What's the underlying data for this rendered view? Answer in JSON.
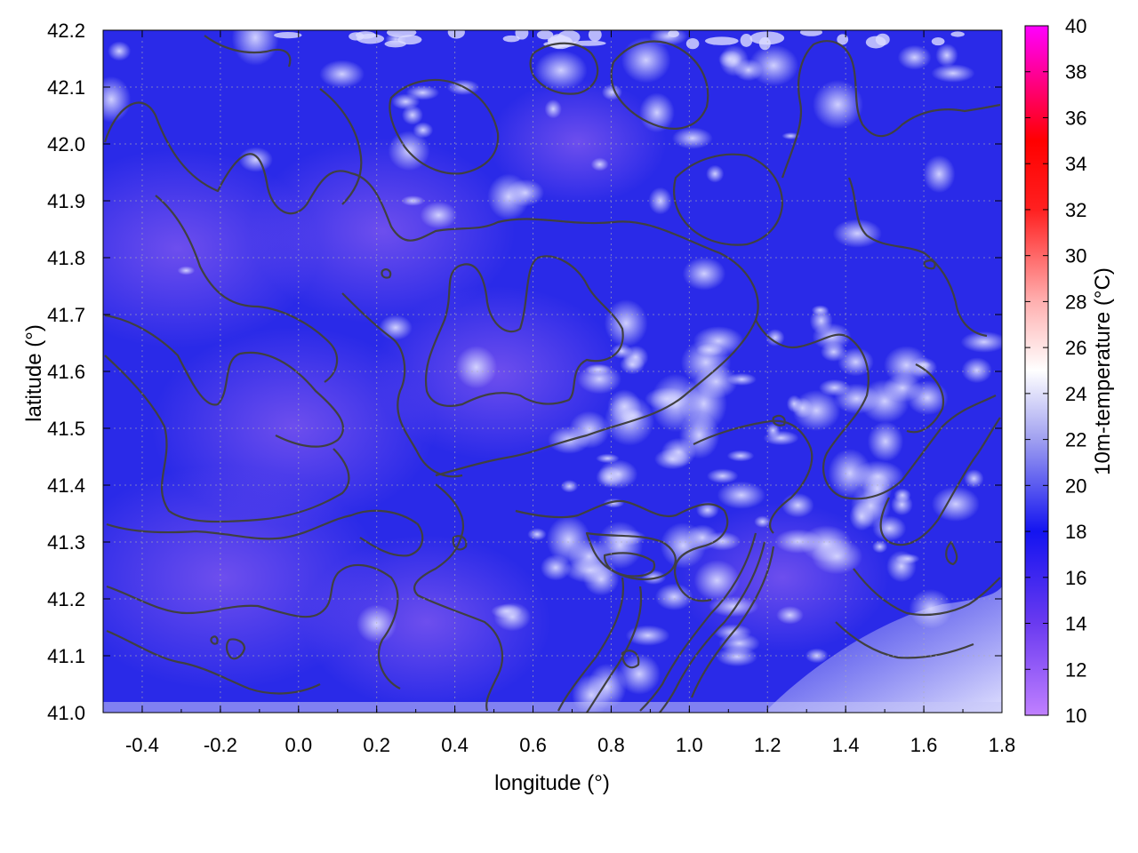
{
  "chart_data": {
    "type": "heatmap",
    "title": "",
    "xlabel": "longitude (°)",
    "ylabel": "latitude (°)",
    "xlim": [
      -0.5,
      1.8
    ],
    "ylim": [
      41.0,
      42.2
    ],
    "x_ticks": [
      "-0.4",
      "-0.2",
      "0.0",
      "0.2",
      "0.4",
      "0.6",
      "0.8",
      "1.0",
      "1.2",
      "1.4",
      "1.6",
      "1.8"
    ],
    "x_tick_values": [
      -0.4,
      -0.2,
      0.0,
      0.2,
      0.4,
      0.6,
      0.8,
      1.0,
      1.2,
      1.4,
      1.6,
      1.8
    ],
    "y_ticks": [
      "41.0",
      "41.1",
      "41.2",
      "41.3",
      "41.4",
      "41.5",
      "41.6",
      "41.7",
      "41.8",
      "41.9",
      "42.0",
      "42.1",
      "42.2"
    ],
    "y_tick_values": [
      41.0,
      41.1,
      41.2,
      41.3,
      41.4,
      41.5,
      41.6,
      41.7,
      41.8,
      41.9,
      42.0,
      42.1,
      42.2
    ],
    "grid": true,
    "colorbar": {
      "label": "10m-temperature (°C)",
      "range": [
        10,
        40
      ],
      "ticks": [
        "10",
        "12",
        "14",
        "16",
        "18",
        "20",
        "22",
        "24",
        "26",
        "28",
        "30",
        "32",
        "34",
        "36",
        "38",
        "40"
      ],
      "tick_values": [
        10,
        12,
        14,
        16,
        18,
        20,
        22,
        24,
        26,
        28,
        30,
        32,
        34,
        36,
        38,
        40
      ],
      "palette": [
        {
          "v": 10,
          "color": "#c080ff"
        },
        {
          "v": 14,
          "color": "#6a3af0"
        },
        {
          "v": 18,
          "color": "#1414f0"
        },
        {
          "v": 22,
          "color": "#a0a0f0"
        },
        {
          "v": 25,
          "color": "#ffffff"
        },
        {
          "v": 28,
          "color": "#ffb0b0"
        },
        {
          "v": 32,
          "color": "#ff2020"
        },
        {
          "v": 35,
          "color": "#ff0000"
        },
        {
          "v": 40,
          "color": "#ff00ff"
        }
      ]
    },
    "contour_color": "#404040"
  }
}
